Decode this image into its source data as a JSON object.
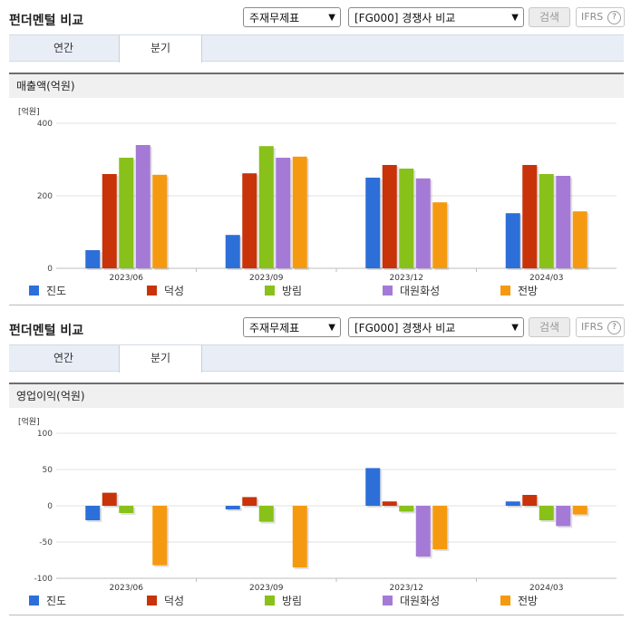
{
  "toolbar": {
    "title": "펀더멘털 비교",
    "theme_select": "주재무제표",
    "compare_select": "[FG000] 경쟁사 비교",
    "search_label": "검색",
    "ifrs_label": "IFRS",
    "help_label": "?",
    "tabs": [
      "연간",
      "분기"
    ],
    "active_tab": "분기"
  },
  "colors": {
    "진도": "#2d6fd8",
    "덕성": "#c8330a",
    "방림": "#88c11a",
    "대원화성": "#a57ad6",
    "전방": "#f59a10"
  },
  "chart_data": [
    {
      "type": "bar",
      "title": "매출액(억원)",
      "unit_label": "[억원]",
      "categories": [
        "2023/06",
        "2023/09",
        "2023/12",
        "2024/03"
      ],
      "ylim": [
        0,
        400
      ],
      "yticks": [
        0,
        200,
        400
      ],
      "series": [
        {
          "name": "진도",
          "values": [
            50,
            92,
            250,
            152
          ]
        },
        {
          "name": "덕성",
          "values": [
            260,
            262,
            285,
            285
          ]
        },
        {
          "name": "방림",
          "values": [
            305,
            337,
            275,
            260
          ]
        },
        {
          "name": "대원화성",
          "values": [
            340,
            305,
            248,
            255
          ]
        },
        {
          "name": "전방",
          "values": [
            258,
            308,
            182,
            157
          ]
        }
      ],
      "legend_position": "bottom"
    },
    {
      "type": "bar",
      "title": "영업이익(억원)",
      "unit_label": "[억원]",
      "categories": [
        "2023/06",
        "2023/09",
        "2023/12",
        "2024/03"
      ],
      "ylim": [
        -100,
        100
      ],
      "yticks": [
        -100,
        -50,
        0,
        50,
        100
      ],
      "series": [
        {
          "name": "진도",
          "values": [
            -20,
            -5,
            52,
            6
          ]
        },
        {
          "name": "덕성",
          "values": [
            18,
            12,
            6,
            15
          ]
        },
        {
          "name": "방림",
          "values": [
            -10,
            -22,
            -8,
            -20
          ]
        },
        {
          "name": "대원화성",
          "values": [
            0,
            0,
            -70,
            -28
          ]
        },
        {
          "name": "전방",
          "values": [
            -82,
            -85,
            -60,
            -12
          ]
        }
      ],
      "legend_position": "bottom"
    }
  ]
}
